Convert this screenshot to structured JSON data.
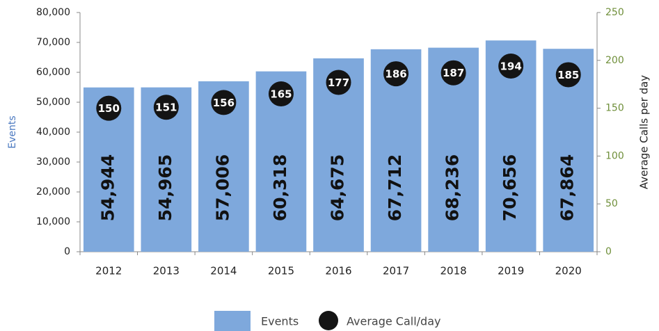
{
  "chart_data": {
    "type": "bar",
    "categories": [
      "2012",
      "2013",
      "2014",
      "2015",
      "2016",
      "2017",
      "2018",
      "2019",
      "2020"
    ],
    "series": [
      {
        "name": "Events",
        "color": "#7ea8dc",
        "values": [
          54944,
          54965,
          57006,
          60318,
          64675,
          67712,
          68236,
          70656,
          67864
        ],
        "value_labels": [
          "54,944",
          "54,965",
          "57,006",
          "60,318",
          "64,675",
          "67,712",
          "68,236",
          "70,656",
          "67,864"
        ]
      },
      {
        "name": "Average Call/day",
        "color": "#141414",
        "axis": "y2",
        "values": [
          150,
          151,
          156,
          165,
          177,
          186,
          187,
          194,
          185
        ]
      }
    ],
    "ylabel": "Events",
    "y2label": "Average Calls per day",
    "ylim": [
      0,
      80000
    ],
    "yticks": [
      0,
      {
        "value": 10000,
        "label": "10,000"
      },
      {
        "value": 20000,
        "label": "20,000"
      },
      {
        "value": 30000,
        "label": "30,000"
      },
      {
        "value": 40000,
        "label": "40,000"
      },
      {
        "value": 50000,
        "label": "50,000"
      },
      {
        "value": 60000,
        "label": "60,000"
      },
      {
        "value": 70000,
        "label": "70,000"
      },
      {
        "value": 80000,
        "label": "80,000"
      }
    ],
    "y2lim": [
      0,
      250
    ],
    "y2ticks": [
      0,
      50,
      100,
      150,
      200,
      250
    ],
    "legend": "bottom"
  }
}
